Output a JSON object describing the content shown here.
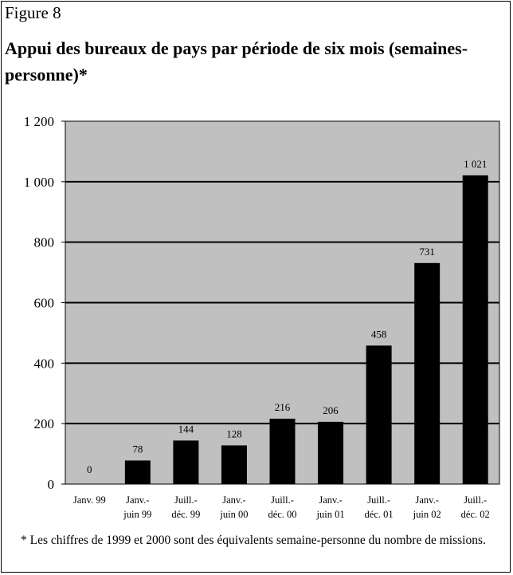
{
  "chart_data": {
    "type": "bar",
    "label": "Figure 8",
    "title": "Appui des bureaux de pays par période de six mois (semaines-personne)*",
    "categories": [
      "Janv. 99",
      "Janv.-\njuin 99",
      "Juill.-\ndéc. 99",
      "Janv.-\njuin 00",
      "Juill.-\ndéc. 00",
      "Janv.-\njuin 01",
      "Juill.-\ndéc. 01",
      "Janv.-\njuin 02",
      "Juill.-\ndéc. 02"
    ],
    "values": [
      0,
      78,
      144,
      128,
      216,
      206,
      458,
      731,
      1021
    ],
    "value_labels": [
      "0",
      "78",
      "144",
      "128",
      "216",
      "206",
      "458",
      "731",
      "1 021"
    ],
    "color": "#000000",
    "plot_background": "#c0c0c0",
    "ylim": [
      0,
      1200
    ],
    "yticks": [
      0,
      200,
      400,
      600,
      800,
      {
        "value": 1000,
        "label": "1 000"
      },
      {
        "value": 1200,
        "label": "1 200"
      }
    ],
    "grid": true,
    "footnote": "*  Les chiffres de 1999 et 2000 sont des équivalents semaine-personne du nombre de missions."
  }
}
